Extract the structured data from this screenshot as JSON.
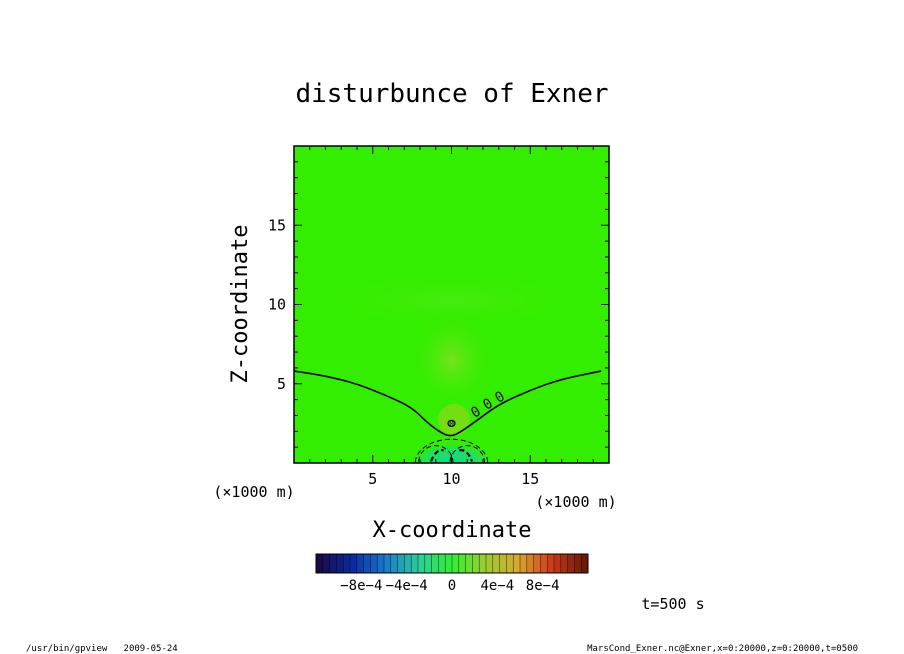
{
  "chart_data": {
    "type": "contour",
    "title": "disturbunce of Exner",
    "xlabel": "X-coordinate",
    "ylabel": "Z-coordinate",
    "x_unit": "(×1000 m)",
    "y_unit": "(×1000 m)",
    "xlim": [
      0,
      20
    ],
    "ylim": [
      0,
      20
    ],
    "x_ticks": [
      "5",
      "10",
      "15"
    ],
    "y_ticks": [
      "5",
      "10",
      "15"
    ],
    "zero_contour": {
      "label": "0",
      "x": [
        0,
        2,
        4,
        6,
        7.5,
        8.5,
        9.5,
        10,
        10.5,
        11.5,
        13,
        15,
        17,
        19.5
      ],
      "y": [
        5.8,
        5.5,
        5.0,
        4.2,
        3.5,
        2.5,
        1.8,
        1.7,
        1.9,
        2.6,
        3.7,
        4.6,
        5.3,
        5.8
      ]
    },
    "annotations": [
      "0",
      "0 0",
      "0"
    ],
    "colorbar": {
      "tick_labels": [
        "−8e−4",
        "−4e−4",
        "0",
        "4e−4",
        "8e−4"
      ],
      "ticks": [
        -0.0008,
        -0.0004,
        0,
        0.0004,
        0.0008
      ],
      "range": [
        -0.0012,
        0.0012
      ],
      "colors": [
        "#1a0a4a",
        "#0a2aa0",
        "#1a7acc",
        "#2ccc9a",
        "#33ee33",
        "#9acc33",
        "#d8a830",
        "#cc3a1a",
        "#6a1a0a"
      ]
    },
    "time_label": "t=500 s"
  },
  "footer": {
    "left": "/usr/bin/gpview   2009-05-24",
    "right": "MarsCond_Exner.nc@Exner,x=0:20000,z=0:20000,t=0500"
  }
}
